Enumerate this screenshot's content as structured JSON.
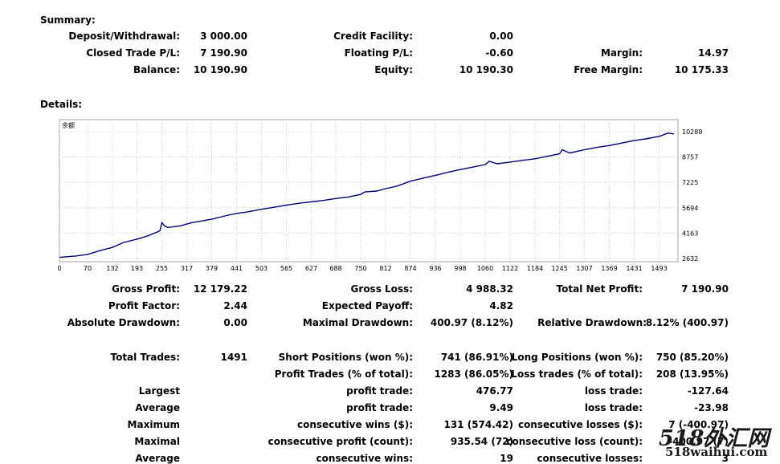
{
  "summary": {
    "heading": "Summary:",
    "deposit_label": "Deposit/Withdrawal:",
    "deposit_value": "3 000.00",
    "credit_label": "Credit Facility:",
    "credit_value": "0.00",
    "closed_pl_label": "Closed Trade P/L:",
    "closed_pl_value": "7 190.90",
    "floating_pl_label": "Floating P/L:",
    "floating_pl_value": "-0.60",
    "margin_label": "Margin:",
    "margin_value": "14.97",
    "balance_label": "Balance:",
    "balance_value": "10 190.90",
    "equity_label": "Equity:",
    "equity_value": "10 190.30",
    "free_margin_label": "Free Margin:",
    "free_margin_value": "10 175.33"
  },
  "details": {
    "heading": "Details:"
  },
  "chart_data": {
    "type": "line",
    "legend": "余额",
    "x_ticks": [
      "0",
      "70",
      "132",
      "193",
      "255",
      "317",
      "379",
      "441",
      "503",
      "565",
      "627",
      "688",
      "750",
      "812",
      "874",
      "936",
      "998",
      "1060",
      "1122",
      "1184",
      "1245",
      "1307",
      "1369",
      "1431",
      "1493"
    ],
    "y_ticks": [
      "10288",
      "8757",
      "7225",
      "5694",
      "4163",
      "2632"
    ],
    "xlim": [
      0,
      1540
    ],
    "ylim": [
      2632,
      10288
    ],
    "series": [
      {
        "x": [
          0,
          40,
          70,
          100,
          132,
          160,
          193,
          220,
          250,
          255,
          262,
          270,
          300,
          330,
          379,
          420,
          441,
          470,
          503,
          540,
          565,
          600,
          627,
          660,
          688,
          720,
          750,
          760,
          790,
          812,
          840,
          874,
          900,
          936,
          970,
          998,
          1030,
          1060,
          1070,
          1090,
          1122,
          1150,
          1184,
          1215,
          1245,
          1252,
          1270,
          1307,
          1340,
          1369,
          1400,
          1431,
          1460,
          1493,
          1515,
          1530
        ],
        "y": [
          2700,
          2780,
          2880,
          3100,
          3300,
          3600,
          3800,
          4000,
          4300,
          4800,
          4600,
          4500,
          4600,
          4800,
          5000,
          5250,
          5350,
          5450,
          5600,
          5750,
          5850,
          5980,
          6050,
          6150,
          6250,
          6350,
          6500,
          6650,
          6700,
          6850,
          7000,
          7300,
          7450,
          7650,
          7850,
          8000,
          8150,
          8300,
          8500,
          8350,
          8450,
          8550,
          8650,
          8800,
          8950,
          9200,
          9000,
          9200,
          9350,
          9450,
          9600,
          9750,
          9850,
          10000,
          10200,
          10150
        ]
      }
    ]
  },
  "results": {
    "gross_profit_label": "Gross Profit:",
    "gross_profit_value": "12 179.22",
    "gross_loss_label": "Gross Loss:",
    "gross_loss_value": "4 988.32",
    "net_profit_label": "Total Net Profit:",
    "net_profit_value": "7 190.90",
    "profit_factor_label": "Profit Factor:",
    "profit_factor_value": "2.44",
    "expected_payoff_label": "Expected Payoff:",
    "expected_payoff_value": "4.82",
    "abs_dd_label": "Absolute Drawdown:",
    "abs_dd_value": "0.00",
    "max_dd_label": "Maximal Drawdown:",
    "max_dd_value": "400.97 (8.12%)",
    "rel_dd_label": "Relative Drawdown:",
    "rel_dd_value": "8.12% (400.97)",
    "total_trades_label": "Total Trades:",
    "total_trades_value": "1491",
    "short_label": "Short Positions (won %):",
    "short_value": "741 (86.91%)",
    "long_label": "Long Positions (won %):",
    "long_value": "750 (85.20%)",
    "profit_trades_label": "Profit Trades (% of total):",
    "profit_trades_value": "1283 (86.05%)",
    "loss_trades_label": "Loss trades (% of total):",
    "loss_trades_value": "208 (13.95%)",
    "largest_label": "Largest",
    "largest_profit_label": "profit trade:",
    "largest_profit_value": "476.77",
    "largest_loss_label": "loss trade:",
    "largest_loss_value": "-127.64",
    "average_label": "Average",
    "average_profit_label": "profit trade:",
    "average_profit_value": "9.49",
    "average_loss_label": "loss trade:",
    "average_loss_value": "-23.98",
    "maximum_label": "Maximum",
    "max_cons_wins_label": "consecutive wins ($):",
    "max_cons_wins_value": "131 (574.42)",
    "max_cons_losses_label": "consecutive losses ($):",
    "max_cons_losses_value": "7 (-400.97)",
    "maximal_label": "Maximal",
    "maximal_cons_profit_label": "consecutive profit (count):",
    "maximal_cons_profit_value": "935.54 (72)",
    "maximal_cons_loss_label": "consecutive loss (count):",
    "maximal_cons_loss_value": "-400.97 (7)",
    "average2_label": "Average",
    "avg_cons_wins_label": "consecutive wins:",
    "avg_cons_wins_value": "19",
    "avg_cons_losses_label": "consecutive losses:",
    "avg_cons_losses_value": "3"
  },
  "watermark": {
    "line1": "518外汇网",
    "line2": "518waihui.com"
  }
}
